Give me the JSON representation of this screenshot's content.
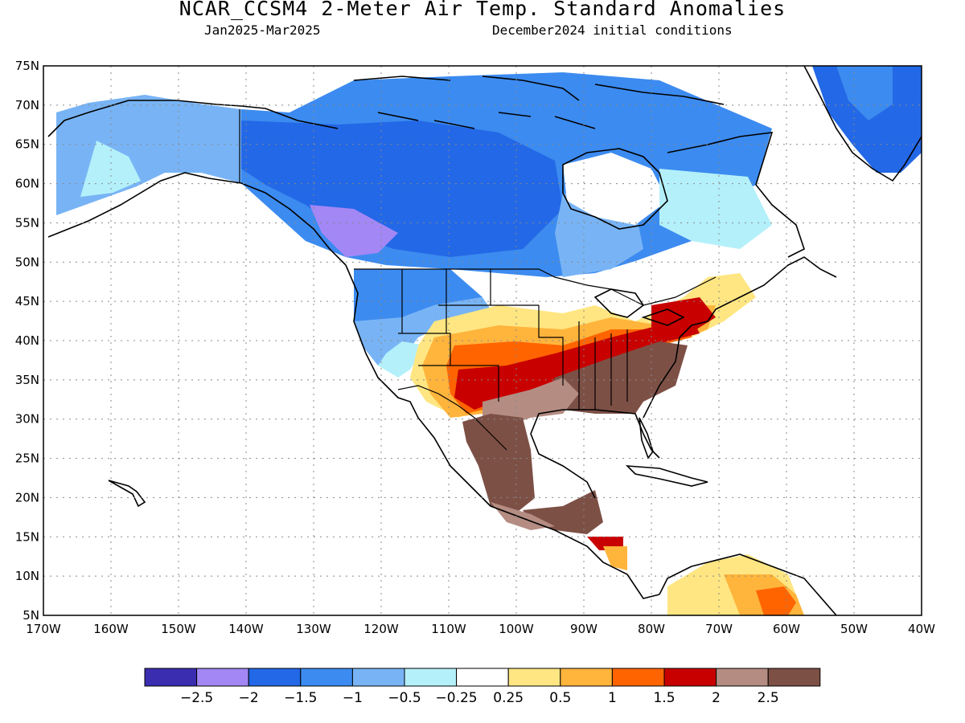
{
  "header": {
    "title": "NCAR_CCSM4 2-Meter Air Temp. Standard Anomalies",
    "period": "Jan2025-Mar2025",
    "init": "December2024 initial conditions"
  },
  "axes": {
    "lat_ticks": [
      "75N",
      "70N",
      "65N",
      "60N",
      "55N",
      "50N",
      "45N",
      "40N",
      "35N",
      "30N",
      "25N",
      "20N",
      "15N",
      "10N",
      "5N"
    ],
    "lon_ticks": [
      "170W",
      "160W",
      "150W",
      "140W",
      "130W",
      "120W",
      "110W",
      "100W",
      "90W",
      "80W",
      "70W",
      "60W",
      "50W",
      "40W"
    ],
    "lat_range": [
      5,
      75
    ],
    "lon_range": [
      -170,
      -40
    ]
  },
  "colorbar": {
    "colors": [
      "#3b2db0",
      "#a287f5",
      "#2368e6",
      "#3c8bf0",
      "#78b4f5",
      "#b4f0fa",
      "#ffffff",
      "#ffe682",
      "#ffb43c",
      "#ff6400",
      "#c80000",
      "#b48c82",
      "#7d5046"
    ],
    "labels": [
      "-2.5",
      "-2",
      "-1.5",
      "-1",
      "-0.5",
      "-0.25",
      "0.25",
      "0.5",
      "1",
      "1.5",
      "2",
      "2.5"
    ]
  },
  "chart_data": {
    "type": "heatmap",
    "title": "NCAR_CCSM4 2-Meter Air Temp. Standard Anomalies",
    "xlabel": "",
    "ylabel": "",
    "xlim": [
      -170,
      -40
    ],
    "ylim": [
      5,
      75
    ],
    "levels": [
      -2.5,
      -2,
      -1.5,
      -1,
      -0.5,
      -0.25,
      0.25,
      0.5,
      1,
      1.5,
      2,
      2.5
    ],
    "regions": [
      {
        "name": "Canada",
        "anomaly": -1.25
      },
      {
        "name": "Alaska",
        "anomaly": -0.75
      },
      {
        "name": "Southeast US",
        "anomaly": 2.6
      },
      {
        "name": "Mexico",
        "anomaly": 2.6
      },
      {
        "name": "Northeast US",
        "anomaly": 1.8
      },
      {
        "name": "Greenland",
        "anomaly": -1.6
      }
    ]
  }
}
